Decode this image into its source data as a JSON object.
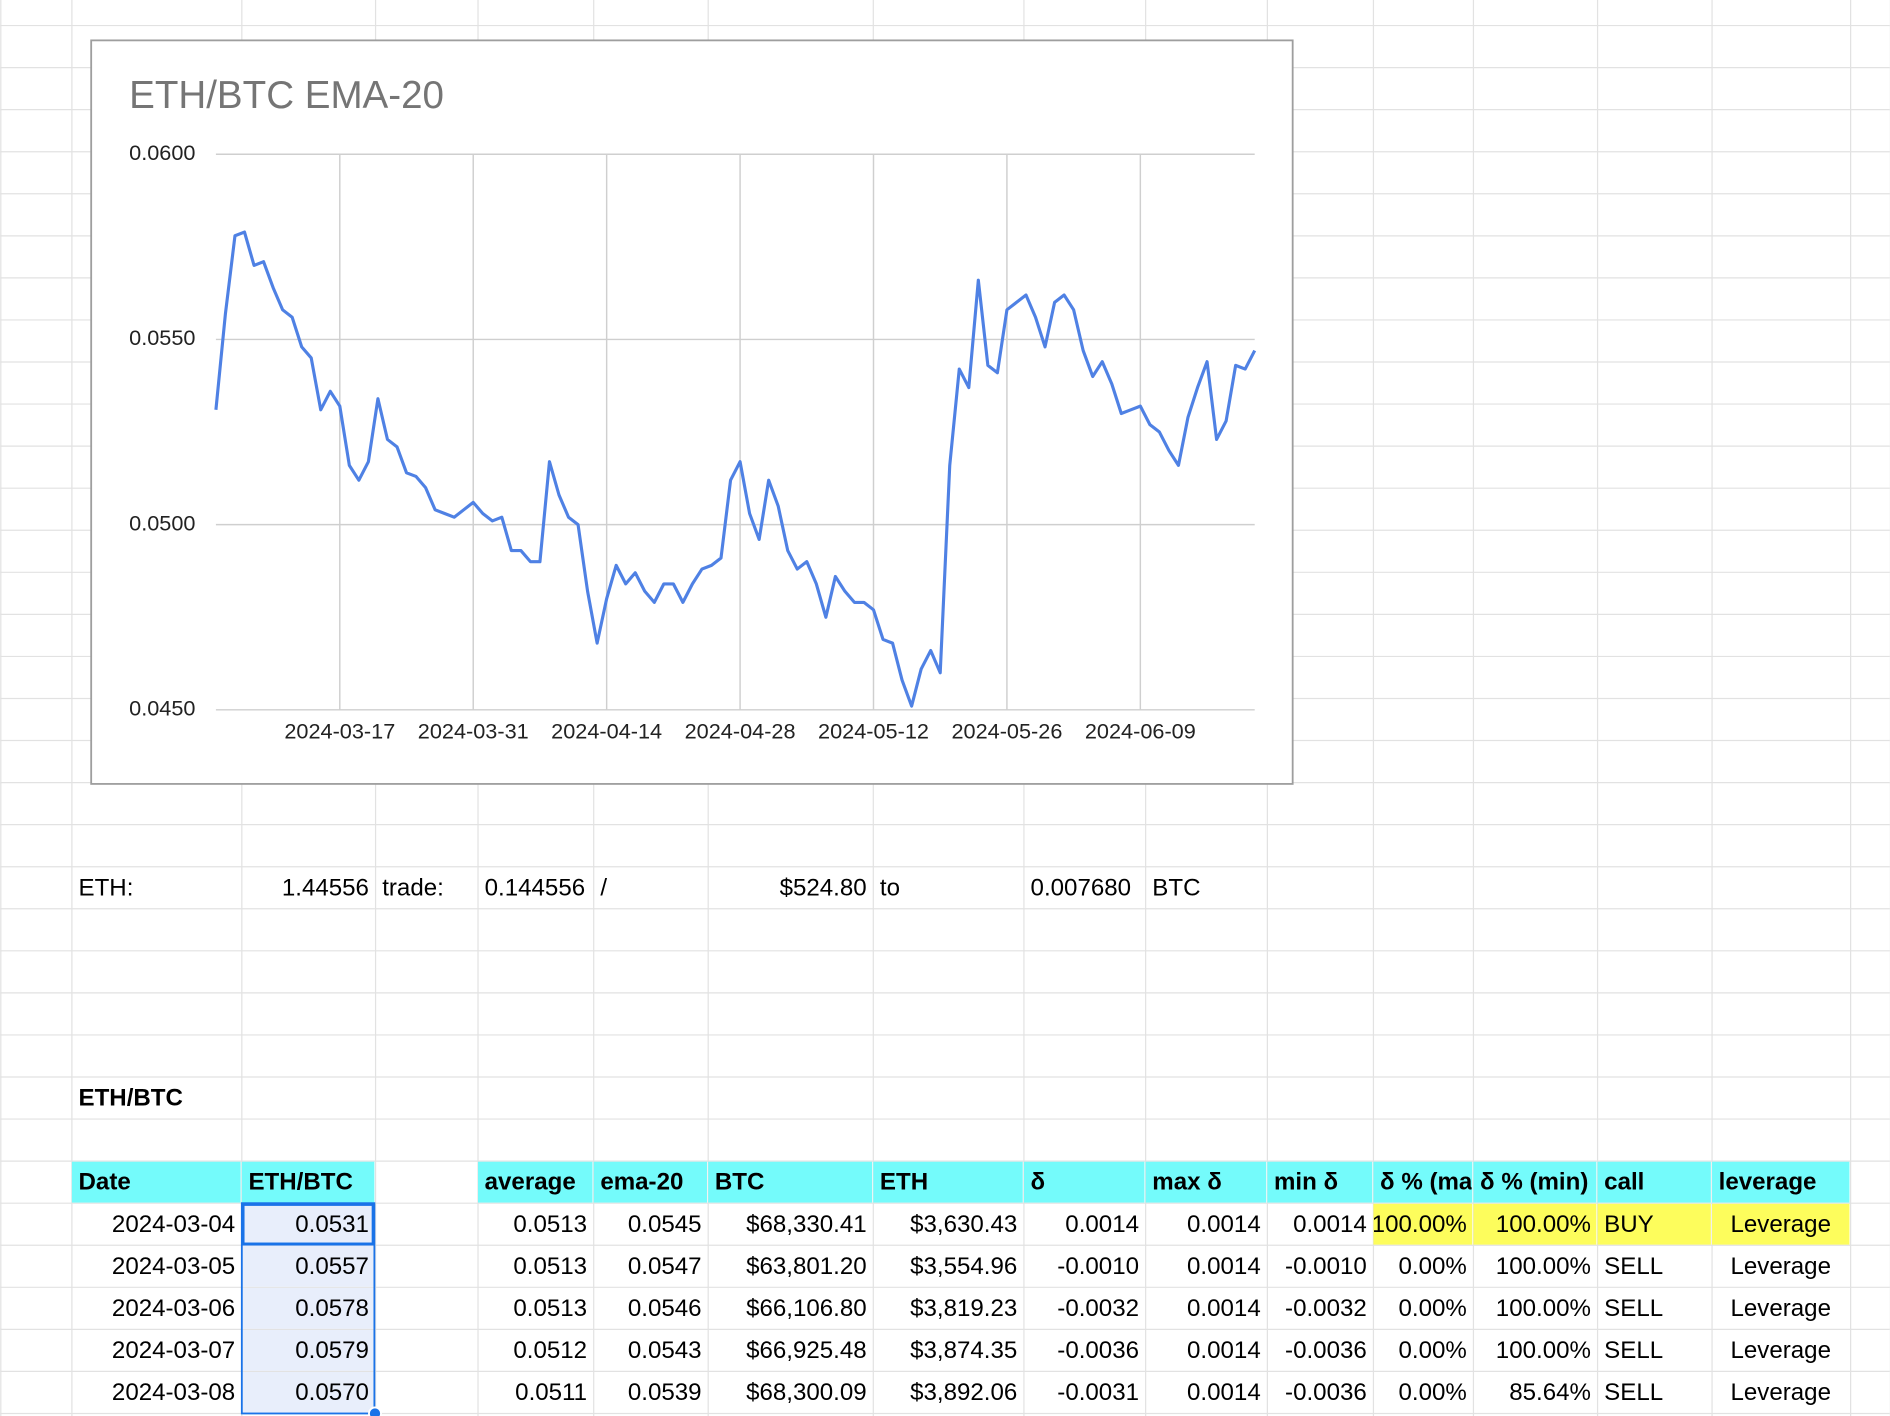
{
  "chart_data": {
    "type": "line",
    "title": "ETH/BTC EMA-20",
    "color": "#4f81e4",
    "x": [
      "2024-03-04",
      "2024-03-05",
      "2024-03-06",
      "2024-03-07",
      "2024-03-08",
      "2024-03-09",
      "2024-03-10",
      "2024-03-11",
      "2024-03-12",
      "2024-03-13",
      "2024-03-14",
      "2024-03-15",
      "2024-03-16",
      "2024-03-17",
      "2024-03-18",
      "2024-03-19",
      "2024-03-20",
      "2024-03-21",
      "2024-03-22",
      "2024-03-23",
      "2024-03-24",
      "2024-03-25",
      "2024-03-26",
      "2024-03-27",
      "2024-03-28",
      "2024-03-29",
      "2024-03-30",
      "2024-03-31",
      "2024-04-01",
      "2024-04-02",
      "2024-04-03",
      "2024-04-04",
      "2024-04-05",
      "2024-04-06",
      "2024-04-07",
      "2024-04-08",
      "2024-04-09",
      "2024-04-10",
      "2024-04-11",
      "2024-04-12",
      "2024-04-13",
      "2024-04-14",
      "2024-04-15",
      "2024-04-16",
      "2024-04-17",
      "2024-04-18",
      "2024-04-19",
      "2024-04-20",
      "2024-04-21",
      "2024-04-22",
      "2024-04-23",
      "2024-04-24",
      "2024-04-25",
      "2024-04-26",
      "2024-04-27",
      "2024-04-28",
      "2024-04-29",
      "2024-04-30",
      "2024-05-01",
      "2024-05-02",
      "2024-05-03",
      "2024-05-04",
      "2024-05-05",
      "2024-05-06",
      "2024-05-07",
      "2024-05-08",
      "2024-05-09",
      "2024-05-10",
      "2024-05-11",
      "2024-05-12",
      "2024-05-13",
      "2024-05-14",
      "2024-05-15",
      "2024-05-16",
      "2024-05-17",
      "2024-05-18",
      "2024-05-19",
      "2024-05-20",
      "2024-05-21",
      "2024-05-22",
      "2024-05-23",
      "2024-05-24",
      "2024-05-25",
      "2024-05-26",
      "2024-05-27",
      "2024-05-28",
      "2024-05-29",
      "2024-05-30",
      "2024-05-31",
      "2024-06-01",
      "2024-06-02",
      "2024-06-03",
      "2024-06-04",
      "2024-06-05",
      "2024-06-06",
      "2024-06-07",
      "2024-06-08",
      "2024-06-09",
      "2024-06-10",
      "2024-06-11",
      "2024-06-12",
      "2024-06-13",
      "2024-06-14",
      "2024-06-15",
      "2024-06-16",
      "2024-06-17",
      "2024-06-18",
      "2024-06-19",
      "2024-06-20",
      "2024-06-21"
    ],
    "values": [
      0.0531,
      0.0557,
      0.0578,
      0.0579,
      0.057,
      0.0571,
      0.0564,
      0.0558,
      0.0556,
      0.0548,
      0.0545,
      0.0531,
      0.0536,
      0.0532,
      0.0516,
      0.0512,
      0.0517,
      0.0534,
      0.0523,
      0.0521,
      0.0514,
      0.0513,
      0.051,
      0.0504,
      0.0503,
      0.0502,
      0.0504,
      0.0506,
      0.0503,
      0.0501,
      0.0502,
      0.0493,
      0.0493,
      0.049,
      0.049,
      0.0517,
      0.0508,
      0.0502,
      0.05,
      0.0482,
      0.0468,
      0.048,
      0.0489,
      0.0484,
      0.0487,
      0.0482,
      0.0479,
      0.0484,
      0.0484,
      0.0479,
      0.0484,
      0.0488,
      0.0489,
      0.0491,
      0.0512,
      0.0517,
      0.0503,
      0.0496,
      0.0512,
      0.0505,
      0.0493,
      0.0488,
      0.049,
      0.0484,
      0.0475,
      0.0486,
      0.0482,
      0.0479,
      0.0479,
      0.0477,
      0.0469,
      0.0468,
      0.0458,
      0.0451,
      0.0461,
      0.0466,
      0.046,
      0.0516,
      0.0542,
      0.0537,
      0.0566,
      0.0543,
      0.0541,
      0.0558,
      0.056,
      0.0562,
      0.0556,
      0.0548,
      0.056,
      0.0562,
      0.0558,
      0.0547,
      0.054,
      0.0544,
      0.0538,
      0.053,
      0.0531,
      0.0532,
      0.0527,
      0.0525,
      0.052,
      0.0516,
      0.0529,
      0.0537,
      0.0544,
      0.0523,
      0.0528,
      0.0543,
      0.0542,
      0.0547
    ],
    "xlim": [
      "2024-03-04",
      "2024-06-21"
    ],
    "xticks": [
      "2024-03-17",
      "2024-03-31",
      "2024-04-14",
      "2024-04-28",
      "2024-05-12",
      "2024-05-26",
      "2024-06-09"
    ],
    "ylim": [
      0.045,
      0.06
    ],
    "yticks": [
      {
        "value": 0.045,
        "label": "0.0450"
      },
      {
        "value": 0.05,
        "label": "0.0500"
      },
      {
        "value": 0.055,
        "label": "0.0550"
      },
      {
        "value": 0.06,
        "label": "0.0600"
      }
    ],
    "grid": true
  },
  "sheet": {
    "eth_row": [
      "ETH:",
      "1.44556",
      "trade:",
      "0.144556",
      "/",
      "$524.80",
      "to",
      "0.007680",
      "BTC"
    ],
    "section_label": "ETH/BTC",
    "left_table": {
      "header": [
        "Date",
        "ETH/BTC"
      ],
      "rows": [
        [
          "2024-03-04",
          "0.0531"
        ],
        [
          "2024-03-05",
          "0.0557"
        ],
        [
          "2024-03-06",
          "0.0578"
        ],
        [
          "2024-03-07",
          "0.0579"
        ],
        [
          "2024-03-08",
          "0.0570"
        ]
      ]
    },
    "right_table": {
      "header": [
        "average",
        "ema-20",
        "BTC",
        "ETH",
        "δ",
        "max δ",
        "min δ",
        "δ % (max)",
        "δ % (min)",
        "call",
        "leverage"
      ],
      "rows": [
        [
          "0.0513",
          "0.0545",
          "$68,330.41",
          "$3,630.43",
          "0.0014",
          "0.0014",
          "0.0014",
          "100.00%",
          "100.00%",
          "BUY",
          "Leverage"
        ],
        [
          "0.0513",
          "0.0547",
          "$63,801.20",
          "$3,554.96",
          "-0.0010",
          "0.0014",
          "-0.0010",
          "0.00%",
          "100.00%",
          "SELL",
          "Leverage"
        ],
        [
          "0.0513",
          "0.0546",
          "$66,106.80",
          "$3,819.23",
          "-0.0032",
          "0.0014",
          "-0.0032",
          "0.00%",
          "100.00%",
          "SELL",
          "Leverage"
        ],
        [
          "0.0512",
          "0.0543",
          "$66,925.48",
          "$3,874.35",
          "-0.0036",
          "0.0014",
          "-0.0036",
          "0.00%",
          "100.00%",
          "SELL",
          "Leverage"
        ],
        [
          "0.0511",
          "0.0539",
          "$68,300.09",
          "$3,892.06",
          "-0.0031",
          "0.0014",
          "-0.0036",
          "0.00%",
          "85.64%",
          "SELL",
          "Leverage"
        ]
      ]
    }
  }
}
